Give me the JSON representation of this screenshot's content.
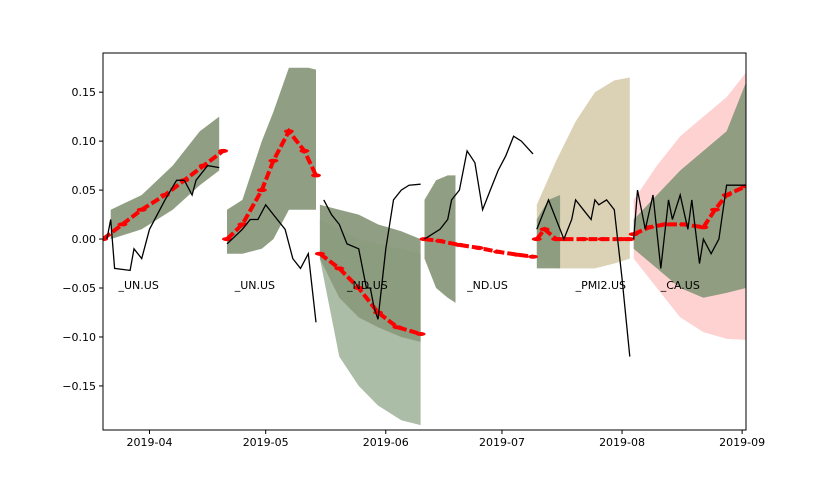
{
  "chart_data": {
    "type": "line",
    "x_range": [
      "2019-03-20",
      "2019-09-02"
    ],
    "ylim": [
      -0.195,
      0.19
    ],
    "x_ticks": [
      "2019-04-01",
      "2019-05-01",
      "2019-06-01",
      "2019-07-01",
      "2019-08-01",
      "2019-09-01"
    ],
    "x_tick_labels": [
      "2019-04",
      "2019-05",
      "2019-06",
      "2019-07",
      "2019-08",
      "2019-09"
    ],
    "y_ticks": [
      -0.15,
      -0.1,
      -0.05,
      0.0,
      0.05,
      0.1,
      0.15
    ],
    "y_tick_labels": [
      "−0.15",
      "−0.10",
      "−0.05",
      "0.00",
      "0.05",
      "0.10",
      "0.15"
    ],
    "grid": false,
    "colors": {
      "band_green": "#8a9a7c",
      "band_tan": "#d9cfb1",
      "band_pink": "#ffd0d0",
      "band_sage": "#a7b8a2",
      "forecast": "#ff0000",
      "actual": "#000000"
    },
    "annotations": [
      {
        "text": "_UN.US",
        "x": "2019-03-24",
        "y": -0.047
      },
      {
        "text": "_UN.US",
        "x": "2019-04-23",
        "y": -0.047
      },
      {
        "text": "_ND.US",
        "x": "2019-05-22",
        "y": -0.047
      },
      {
        "text": "_ND.US",
        "x": "2019-06-22",
        "y": -0.047
      },
      {
        "text": "_PMI2.US",
        "x": "2019-07-20",
        "y": -0.047
      },
      {
        "text": "_CA.US",
        "x": "2019-08-11",
        "y": -0.047
      }
    ],
    "segments": [
      {
        "name": "_UN.US",
        "bands": [
          {
            "color": "band_green",
            "x": [
              "2019-03-22",
              "2019-03-30",
              "2019-04-07",
              "2019-04-14",
              "2019-04-19"
            ],
            "lo": [
              0.0,
              0.01,
              0.03,
              0.055,
              0.07
            ],
            "hi": [
              0.03,
              0.045,
              0.075,
              0.11,
              0.125
            ]
          }
        ],
        "forecast": {
          "x": [
            "2019-03-20",
            "2019-03-25",
            "2019-03-30",
            "2019-04-05",
            "2019-04-10",
            "2019-04-15",
            "2019-04-20"
          ],
          "y": [
            0.0,
            0.015,
            0.03,
            0.045,
            0.06,
            0.075,
            0.09
          ]
        },
        "actual": {
          "x": [
            "2019-03-21",
            "2019-03-22",
            "2019-03-23",
            "2019-03-27",
            "2019-03-28",
            "2019-03-30",
            "2019-04-01",
            "2019-04-05",
            "2019-04-08",
            "2019-04-10",
            "2019-04-12",
            "2019-04-13",
            "2019-04-16",
            "2019-04-19"
          ],
          "y": [
            0.0,
            0.02,
            -0.03,
            -0.032,
            -0.01,
            -0.02,
            0.01,
            0.04,
            0.06,
            0.06,
            0.045,
            0.06,
            0.075,
            0.073
          ]
        }
      },
      {
        "name": "_UN.US",
        "bands": [
          {
            "color": "band_green",
            "x": [
              "2019-04-21",
              "2019-04-25",
              "2019-04-30",
              "2019-05-03",
              "2019-05-07",
              "2019-05-12",
              "2019-05-14"
            ],
            "lo": [
              -0.015,
              -0.015,
              -0.01,
              0.0,
              0.03,
              0.03,
              0.03
            ],
            "hi": [
              0.03,
              0.04,
              0.1,
              0.13,
              0.175,
              0.175,
              0.173
            ]
          }
        ],
        "forecast": {
          "x": [
            "2019-04-21",
            "2019-04-25",
            "2019-04-30",
            "2019-05-03",
            "2019-05-07",
            "2019-05-11",
            "2019-05-14"
          ],
          "y": [
            0.0,
            0.015,
            0.05,
            0.08,
            0.11,
            0.09,
            0.065
          ]
        },
        "actual": {
          "x": [
            "2019-04-21",
            "2019-04-25",
            "2019-04-27",
            "2019-04-29",
            "2019-05-01",
            "2019-05-03",
            "2019-05-06",
            "2019-05-08",
            "2019-05-10",
            "2019-05-12",
            "2019-05-14"
          ],
          "y": [
            -0.005,
            0.01,
            0.02,
            0.02,
            0.035,
            0.025,
            0.01,
            -0.02,
            -0.03,
            -0.015,
            -0.085
          ]
        }
      },
      {
        "name": "_ND.US",
        "bands": [
          {
            "color": "band_sage",
            "x": [
              "2019-05-15",
              "2019-05-20",
              "2019-05-25",
              "2019-05-30",
              "2019-06-05",
              "2019-06-10"
            ],
            "lo": [
              -0.02,
              -0.12,
              -0.15,
              -0.17,
              -0.185,
              -0.19
            ],
            "hi": [
              0.02,
              0.01,
              0.0,
              -0.005,
              -0.01,
              -0.015
            ]
          },
          {
            "color": "band_green",
            "x": [
              "2019-05-15",
              "2019-05-20",
              "2019-05-25",
              "2019-05-30",
              "2019-06-05",
              "2019-06-10"
            ],
            "lo": [
              -0.02,
              -0.06,
              -0.08,
              -0.09,
              -0.1,
              -0.105
            ],
            "hi": [
              0.035,
              0.03,
              0.025,
              0.015,
              0.008,
              0.0
            ]
          }
        ],
        "forecast": {
          "x": [
            "2019-05-15",
            "2019-05-20",
            "2019-05-25",
            "2019-05-30",
            "2019-06-04",
            "2019-06-10"
          ],
          "y": [
            -0.015,
            -0.03,
            -0.05,
            -0.075,
            -0.09,
            -0.097
          ]
        },
        "actual": {
          "x": [
            "2019-05-16",
            "2019-05-18",
            "2019-05-20",
            "2019-05-22",
            "2019-05-25",
            "2019-05-27",
            "2019-05-28",
            "2019-05-29",
            "2019-05-30",
            "2019-06-01",
            "2019-06-03",
            "2019-06-05",
            "2019-06-07",
            "2019-06-10"
          ],
          "y": [
            0.04,
            0.025,
            0.015,
            -0.005,
            -0.01,
            -0.05,
            -0.05,
            -0.07,
            -0.082,
            -0.01,
            0.04,
            0.05,
            0.055,
            0.056
          ]
        }
      },
      {
        "name": "_ND.US",
        "bands": [
          {
            "color": "band_green",
            "x": [
              "2019-06-11",
              "2019-06-14",
              "2019-06-17",
              "2019-06-19"
            ],
            "lo": [
              -0.02,
              -0.05,
              -0.06,
              -0.065
            ],
            "hi": [
              0.04,
              0.06,
              0.065,
              0.065
            ]
          }
        ],
        "forecast": {
          "x": [
            "2019-06-11",
            "2019-06-15",
            "2019-06-20",
            "2019-06-25",
            "2019-06-30",
            "2019-07-05",
            "2019-07-09"
          ],
          "y": [
            0.0,
            -0.002,
            -0.006,
            -0.009,
            -0.013,
            -0.016,
            -0.018
          ]
        },
        "actual": {
          "x": [
            "2019-06-11",
            "2019-06-13",
            "2019-06-15",
            "2019-06-17",
            "2019-06-18",
            "2019-06-20",
            "2019-06-22",
            "2019-06-24",
            "2019-06-26",
            "2019-06-28",
            "2019-06-30",
            "2019-07-02",
            "2019-07-04",
            "2019-07-06",
            "2019-07-09"
          ],
          "y": [
            0.0,
            0.005,
            0.01,
            0.02,
            0.04,
            0.05,
            0.09,
            0.078,
            0.03,
            0.05,
            0.07,
            0.085,
            0.105,
            0.1,
            0.087
          ]
        }
      },
      {
        "name": "_PMI2.US",
        "bands": [
          {
            "color": "band_tan",
            "x": [
              "2019-07-10",
              "2019-07-15",
              "2019-07-20",
              "2019-07-25",
              "2019-07-30",
              "2019-08-03"
            ],
            "lo": [
              -0.02,
              -0.03,
              -0.03,
              -0.03,
              -0.025,
              -0.02
            ],
            "hi": [
              0.035,
              0.08,
              0.12,
              0.15,
              0.162,
              0.165
            ]
          },
          {
            "color": "band_green",
            "x": [
              "2019-07-10",
              "2019-07-13",
              "2019-07-16"
            ],
            "lo": [
              -0.03,
              -0.03,
              -0.03
            ],
            "hi": [
              0.02,
              0.04,
              0.045
            ]
          }
        ],
        "forecast": {
          "x": [
            "2019-07-10",
            "2019-07-12",
            "2019-07-15",
            "2019-07-17",
            "2019-07-22",
            "2019-07-27",
            "2019-08-01",
            "2019-08-03"
          ],
          "y": [
            0.0,
            0.01,
            0.0,
            0.0,
            0.0,
            0.0,
            0.0,
            0.0
          ]
        },
        "actual": {
          "x": [
            "2019-07-10",
            "2019-07-12",
            "2019-07-13",
            "2019-07-15",
            "2019-07-17",
            "2019-07-19",
            "2019-07-20",
            "2019-07-22",
            "2019-07-24",
            "2019-07-25",
            "2019-07-26",
            "2019-07-28",
            "2019-07-30",
            "2019-08-01",
            "2019-08-03"
          ],
          "y": [
            0.01,
            0.03,
            0.04,
            0.02,
            0.0,
            0.02,
            0.04,
            0.03,
            0.02,
            0.04,
            0.035,
            0.04,
            0.03,
            -0.04,
            -0.12
          ]
        }
      },
      {
        "name": "_CA.US",
        "bands": [
          {
            "color": "band_pink",
            "x": [
              "2019-08-04",
              "2019-08-10",
              "2019-08-16",
              "2019-08-22",
              "2019-08-28",
              "2019-09-02"
            ],
            "lo": [
              -0.02,
              -0.05,
              -0.08,
              -0.095,
              -0.102,
              -0.103
            ],
            "hi": [
              0.04,
              0.075,
              0.105,
              0.125,
              0.145,
              0.17
            ]
          },
          {
            "color": "band_green",
            "x": [
              "2019-08-04",
              "2019-08-10",
              "2019-08-16",
              "2019-08-22",
              "2019-08-28",
              "2019-09-02"
            ],
            "lo": [
              -0.01,
              -0.03,
              -0.05,
              -0.06,
              -0.055,
              -0.05
            ],
            "hi": [
              0.02,
              0.045,
              0.07,
              0.09,
              0.11,
              0.16
            ]
          }
        ],
        "forecast": {
          "x": [
            "2019-08-04",
            "2019-08-08",
            "2019-08-12",
            "2019-08-17",
            "2019-08-22",
            "2019-08-25",
            "2019-08-28",
            "2019-09-02"
          ],
          "y": [
            0.005,
            0.012,
            0.015,
            0.015,
            0.012,
            0.03,
            0.045,
            0.054
          ]
        },
        "actual": {
          "x": [
            "2019-08-04",
            "2019-08-05",
            "2019-08-07",
            "2019-08-09",
            "2019-08-11",
            "2019-08-13",
            "2019-08-14",
            "2019-08-16",
            "2019-08-18",
            "2019-08-19",
            "2019-08-21",
            "2019-08-22",
            "2019-08-24",
            "2019-08-26",
            "2019-08-28",
            "2019-08-30",
            "2019-09-02"
          ],
          "y": [
            0.0,
            0.05,
            0.01,
            0.045,
            -0.03,
            0.04,
            0.02,
            0.045,
            0.01,
            0.04,
            -0.025,
            0.0,
            -0.015,
            0.0,
            0.055,
            0.055,
            0.055
          ]
        }
      }
    ]
  }
}
